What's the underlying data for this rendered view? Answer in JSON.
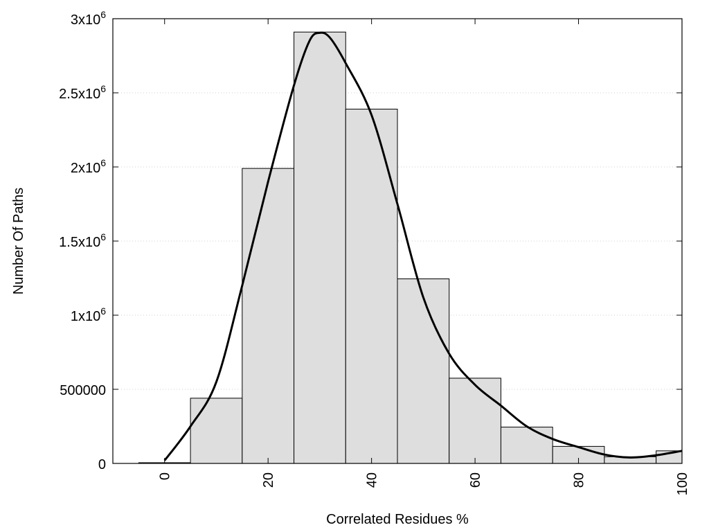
{
  "chart_data": {
    "type": "bar",
    "title": "",
    "xlabel": "Correlated Residues %",
    "ylabel": "Number Of Paths",
    "xlim": [
      -10,
      100
    ],
    "ylim": [
      0,
      3000000
    ],
    "grid": true,
    "x_ticks": [
      {
        "value": 0,
        "label": "0"
      },
      {
        "value": 20,
        "label": "20"
      },
      {
        "value": 40,
        "label": "40"
      },
      {
        "value": 60,
        "label": "60"
      },
      {
        "value": 80,
        "label": "80"
      },
      {
        "value": 100,
        "label": "100"
      }
    ],
    "y_ticks": [
      {
        "value": 0,
        "mant": "0",
        "exp": ""
      },
      {
        "value": 500000,
        "mant": "500000",
        "exp": ""
      },
      {
        "value": 1000000,
        "mant": "1x10",
        "exp": "6"
      },
      {
        "value": 1500000,
        "mant": "1.5x10",
        "exp": "6"
      },
      {
        "value": 2000000,
        "mant": "2x10",
        "exp": "6"
      },
      {
        "value": 2500000,
        "mant": "2.5x10",
        "exp": "6"
      },
      {
        "value": 3000000,
        "mant": "3x10",
        "exp": "6"
      }
    ],
    "bin_width": 10,
    "bins": [
      {
        "center": 0,
        "value": 5000
      },
      {
        "center": 10,
        "value": 440000
      },
      {
        "center": 20,
        "value": 1990000
      },
      {
        "center": 30,
        "value": 2910000
      },
      {
        "center": 40,
        "value": 2390000
      },
      {
        "center": 50,
        "value": 1245000
      },
      {
        "center": 60,
        "value": 575000
      },
      {
        "center": 70,
        "value": 245000
      },
      {
        "center": 80,
        "value": 115000
      },
      {
        "center": 90,
        "value": 45000
      },
      {
        "center": 100,
        "value": 85000
      }
    ],
    "curve": {
      "x": [
        0,
        5,
        10,
        15,
        20,
        25,
        28,
        30,
        32,
        35,
        40,
        45,
        50,
        55,
        60,
        65,
        70,
        75,
        80,
        85,
        90,
        95,
        100
      ],
      "y": [
        20000,
        250000,
        550000,
        1200000,
        1900000,
        2550000,
        2850000,
        2905000,
        2870000,
        2700000,
        2350000,
        1750000,
        1120000,
        740000,
        530000,
        390000,
        250000,
        165000,
        110000,
        60000,
        40000,
        55000,
        85000
      ]
    },
    "colors": {
      "bar_fill": "#dedede",
      "bar_stroke": "#000000",
      "curve": "#000000",
      "grid": "#cfcfcf"
    }
  }
}
